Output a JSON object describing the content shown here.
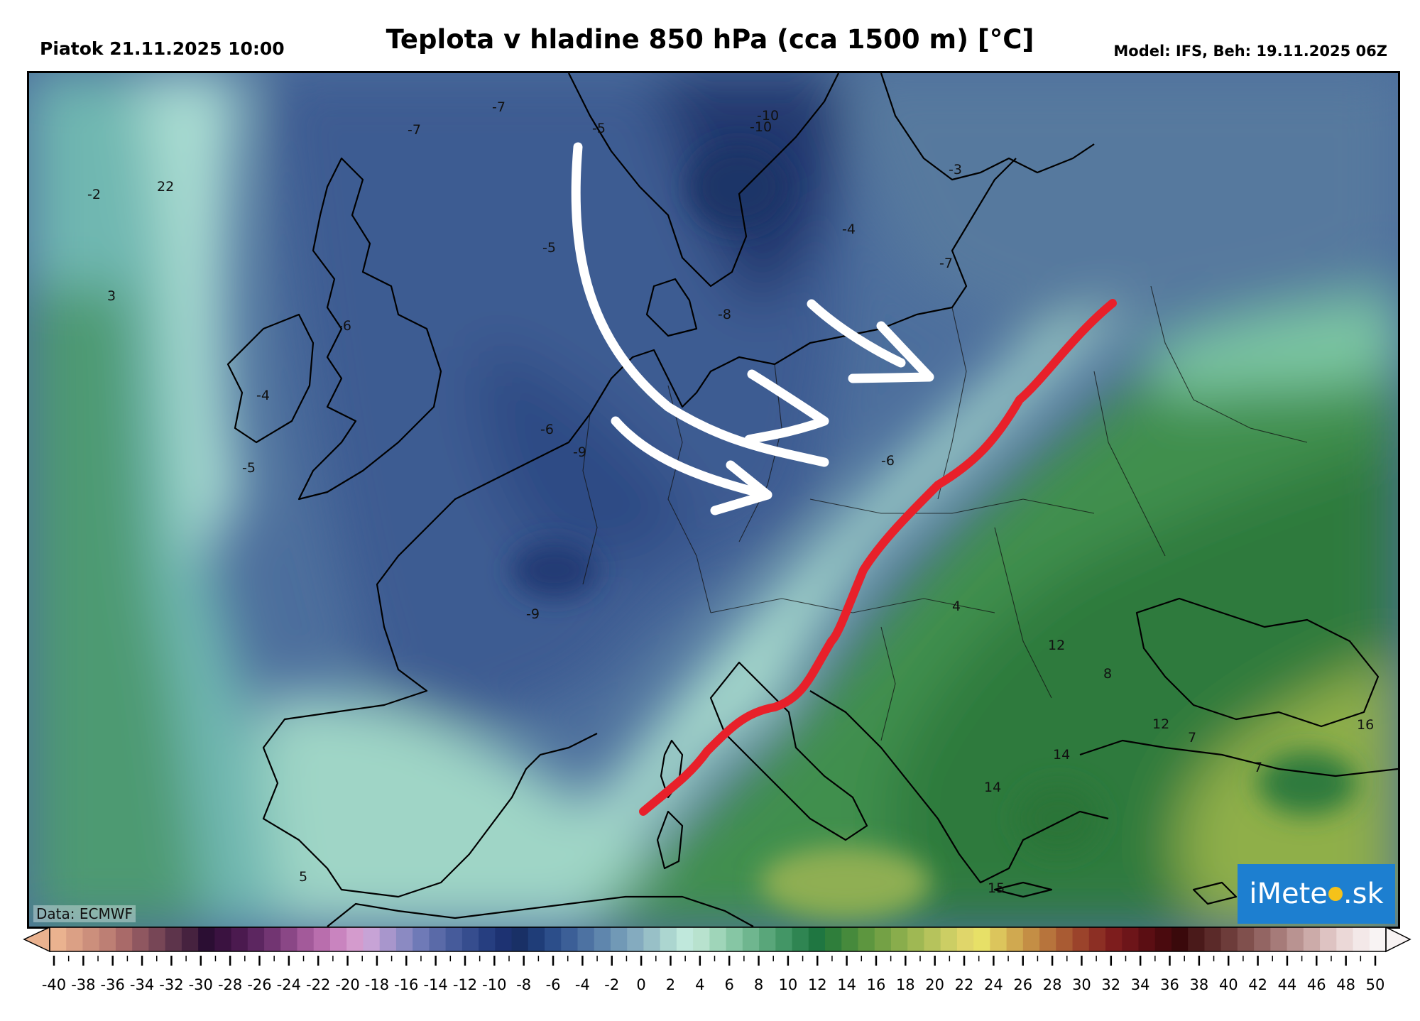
{
  "header": {
    "date": "Piatok 21.11.2025 10:00",
    "title": "Teplota v hladine 850 hPa (cca 1500 m) [°C]",
    "model": "Model: IFS, Beh: 19.11.2025 06Z"
  },
  "map": {
    "data_source": "Data: ECMWF",
    "logo": "iMeteo.sk",
    "contour_labels": [
      "-7",
      "-7",
      "-5",
      "-10",
      "-10",
      "-2",
      "22",
      "-5",
      "3",
      "-6",
      "-3",
      "-4",
      "-7",
      "-8",
      "-6",
      "-4",
      "-5",
      "-6",
      "-9",
      "-9",
      "4",
      "12",
      "8",
      "12",
      "7",
      "14",
      "16",
      "7",
      "14",
      "15",
      "5"
    ],
    "annotations": {
      "white_arrows": "cold air advection arrows",
      "red_line": "cold front"
    }
  },
  "colorbar": {
    "tick_labels": [
      "-40",
      "-38",
      "-36",
      "-34",
      "-32",
      "-30",
      "-28",
      "-26",
      "-24",
      "-22",
      "-20",
      "-18",
      "-16",
      "-14",
      "-12",
      "-10",
      "-8",
      "-6",
      "-4",
      "-2",
      "0",
      "2",
      "4",
      "6",
      "8",
      "10",
      "12",
      "14",
      "16",
      "18",
      "20",
      "22",
      "24",
      "26",
      "28",
      "30",
      "32",
      "34",
      "36",
      "38",
      "40",
      "42",
      "44",
      "46",
      "48",
      "50"
    ],
    "unit": "°C"
  },
  "colors": {
    "cold_front": "#e8202a",
    "arrows": "#ffffff",
    "logo_bg": "#1d7fd0"
  }
}
